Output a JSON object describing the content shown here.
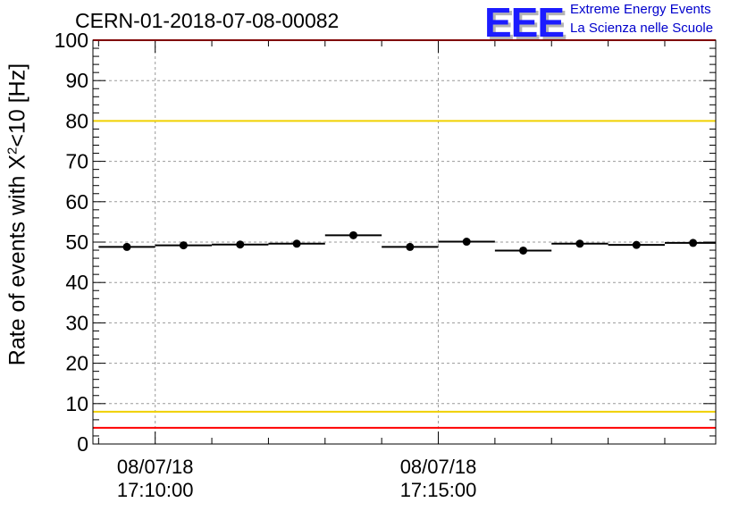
{
  "header": {
    "run_title": "CERN-01-2018-07-08-00082",
    "logo_text": "EEE",
    "logo_line1": "Extreme Energy Events",
    "logo_line2": "La Scienza nelle Scuole"
  },
  "chart_data": {
    "type": "scatter",
    "title": "CERN-01-2018-07-08-00082",
    "ylabel_main": "Rate of events with X",
    "ylabel_sup": "2",
    "ylabel_tail": "<10 [Hz]",
    "ylim": [
      0,
      100
    ],
    "ytick_labels": [
      "0",
      "10",
      "20",
      "30",
      "40",
      "50",
      "60",
      "70",
      "80",
      "90",
      "100"
    ],
    "xtick_labels": [
      {
        "date": "08/07/18",
        "time": "17:10:00",
        "minutes": 10
      },
      {
        "date": "08/07/18",
        "time": "17:15:00",
        "minutes": 15
      }
    ],
    "xlim_minutes": [
      8.9,
      19.9
    ],
    "grid": true,
    "reference_lines": [
      {
        "value": 100,
        "color": "#ff0000"
      },
      {
        "value": 80,
        "color": "#f0d000"
      },
      {
        "value": 8,
        "color": "#f0d000"
      },
      {
        "value": 4,
        "color": "#ff0000"
      }
    ],
    "points": [
      {
        "x_start": 9.0,
        "x_end": 10.0,
        "y": 48.8
      },
      {
        "x_start": 10.0,
        "x_end": 11.0,
        "y": 49.2
      },
      {
        "x_start": 11.0,
        "x_end": 12.0,
        "y": 49.4
      },
      {
        "x_start": 12.0,
        "x_end": 13.0,
        "y": 49.6
      },
      {
        "x_start": 13.0,
        "x_end": 14.0,
        "y": 51.7
      },
      {
        "x_start": 14.0,
        "x_end": 15.0,
        "y": 48.8
      },
      {
        "x_start": 15.0,
        "x_end": 16.0,
        "y": 50.1
      },
      {
        "x_start": 16.0,
        "x_end": 17.0,
        "y": 47.9
      },
      {
        "x_start": 17.0,
        "x_end": 18.0,
        "y": 49.6
      },
      {
        "x_start": 18.0,
        "x_end": 19.0,
        "y": 49.3
      },
      {
        "x_start": 19.0,
        "x_end": 20.0,
        "y": 49.8
      }
    ]
  }
}
